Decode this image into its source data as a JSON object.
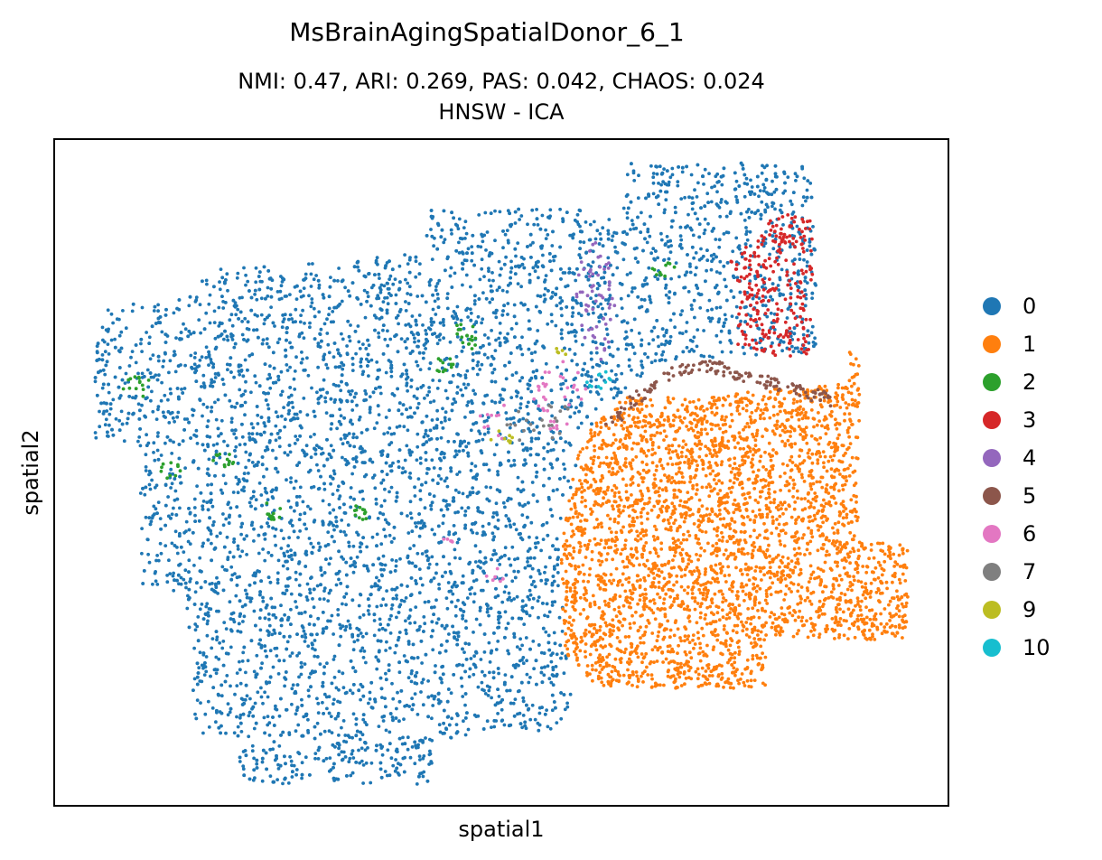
{
  "chart_data": {
    "type": "scatter",
    "title": "MsBrainAgingSpatialDonor_6_1",
    "subtitle": "NMI: 0.47,  ARI: 0.269,  PAS: 0.042,  CHAOS: 0.024",
    "subtitle2": "HNSW - ICA",
    "xlabel": "spatial1",
    "ylabel": "spatial2",
    "xticks": "none",
    "yticks": "none",
    "grid": false,
    "legend_position": "right",
    "series": [
      {
        "name": "0",
        "color": "#1f77b4"
      },
      {
        "name": "1",
        "color": "#ff7f0e"
      },
      {
        "name": "2",
        "color": "#2ca02c"
      },
      {
        "name": "3",
        "color": "#d62728"
      },
      {
        "name": "4",
        "color": "#9467bd"
      },
      {
        "name": "5",
        "color": "#8c564b"
      },
      {
        "name": "6",
        "color": "#e377c2"
      },
      {
        "name": "7",
        "color": "#7f7f7f"
      },
      {
        "name": "9",
        "color": "#bcbd22"
      },
      {
        "name": "10",
        "color": "#17becf"
      }
    ]
  }
}
